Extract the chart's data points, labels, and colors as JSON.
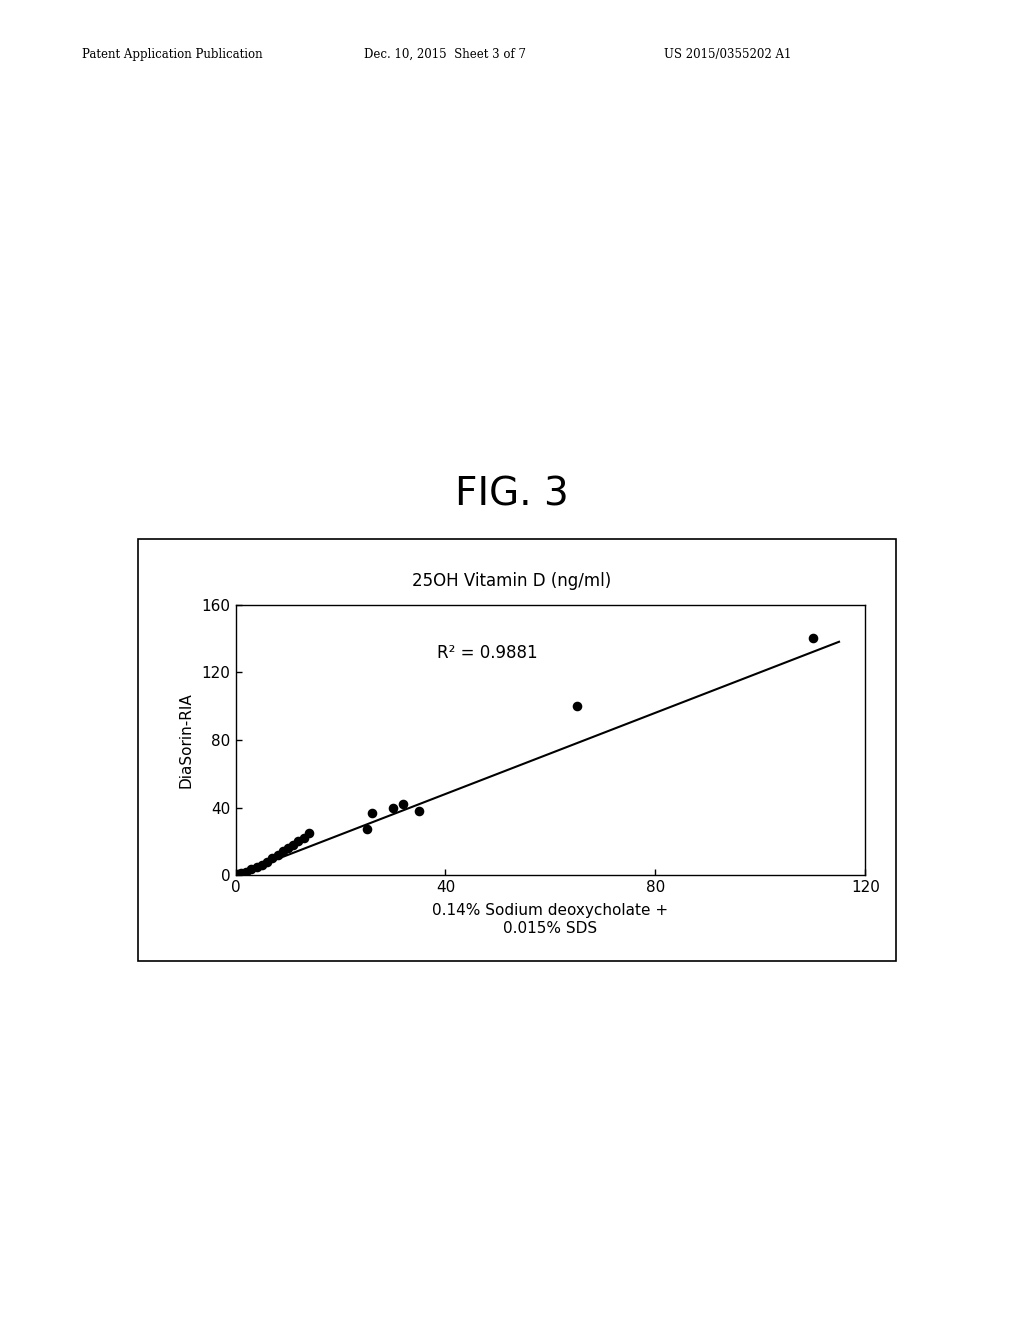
{
  "fig_title": "FIG. 3",
  "patent_header_left": "Patent Application Publication",
  "patent_header_center": "Dec. 10, 2015  Sheet 3 of 7",
  "patent_header_right": "US 2015/0355202 A1",
  "chart_title": "25OH Vitamin D (ng/ml)",
  "xlabel_line1": "0.14% Sodium deoxycholate +",
  "xlabel_line2": "0.015% SDS",
  "ylabel": "DiaSorin-RIA",
  "r2_text": "R² = 0.9881",
  "scatter_x": [
    0.5,
    1.0,
    2.0,
    3.0,
    4.0,
    5.0,
    6.0,
    7.0,
    8.0,
    9.0,
    10.0,
    11.0,
    12.0,
    13.0,
    14.0,
    25.0,
    26.0,
    30.0,
    32.0,
    35.0,
    65.0,
    110.0
  ],
  "scatter_y": [
    0.5,
    1.0,
    2.0,
    3.5,
    5.0,
    6.0,
    8.0,
    10.0,
    12.0,
    14.0,
    16.0,
    18.0,
    20.0,
    22.0,
    25.0,
    27.0,
    37.0,
    40.0,
    42.0,
    38.0,
    100.0,
    140.0
  ],
  "fit_x": [
    0,
    115
  ],
  "fit_y": [
    0,
    138
  ],
  "xlim": [
    0,
    120
  ],
  "ylim": [
    0,
    160
  ],
  "xticks": [
    0,
    40,
    80,
    120
  ],
  "yticks": [
    0,
    40,
    80,
    120,
    160
  ],
  "background_color": "#ffffff",
  "plot_bg_color": "#ffffff",
  "dot_color": "#000000",
  "line_color": "#000000",
  "dot_size": 35,
  "fig_width": 10.24,
  "fig_height": 13.2
}
